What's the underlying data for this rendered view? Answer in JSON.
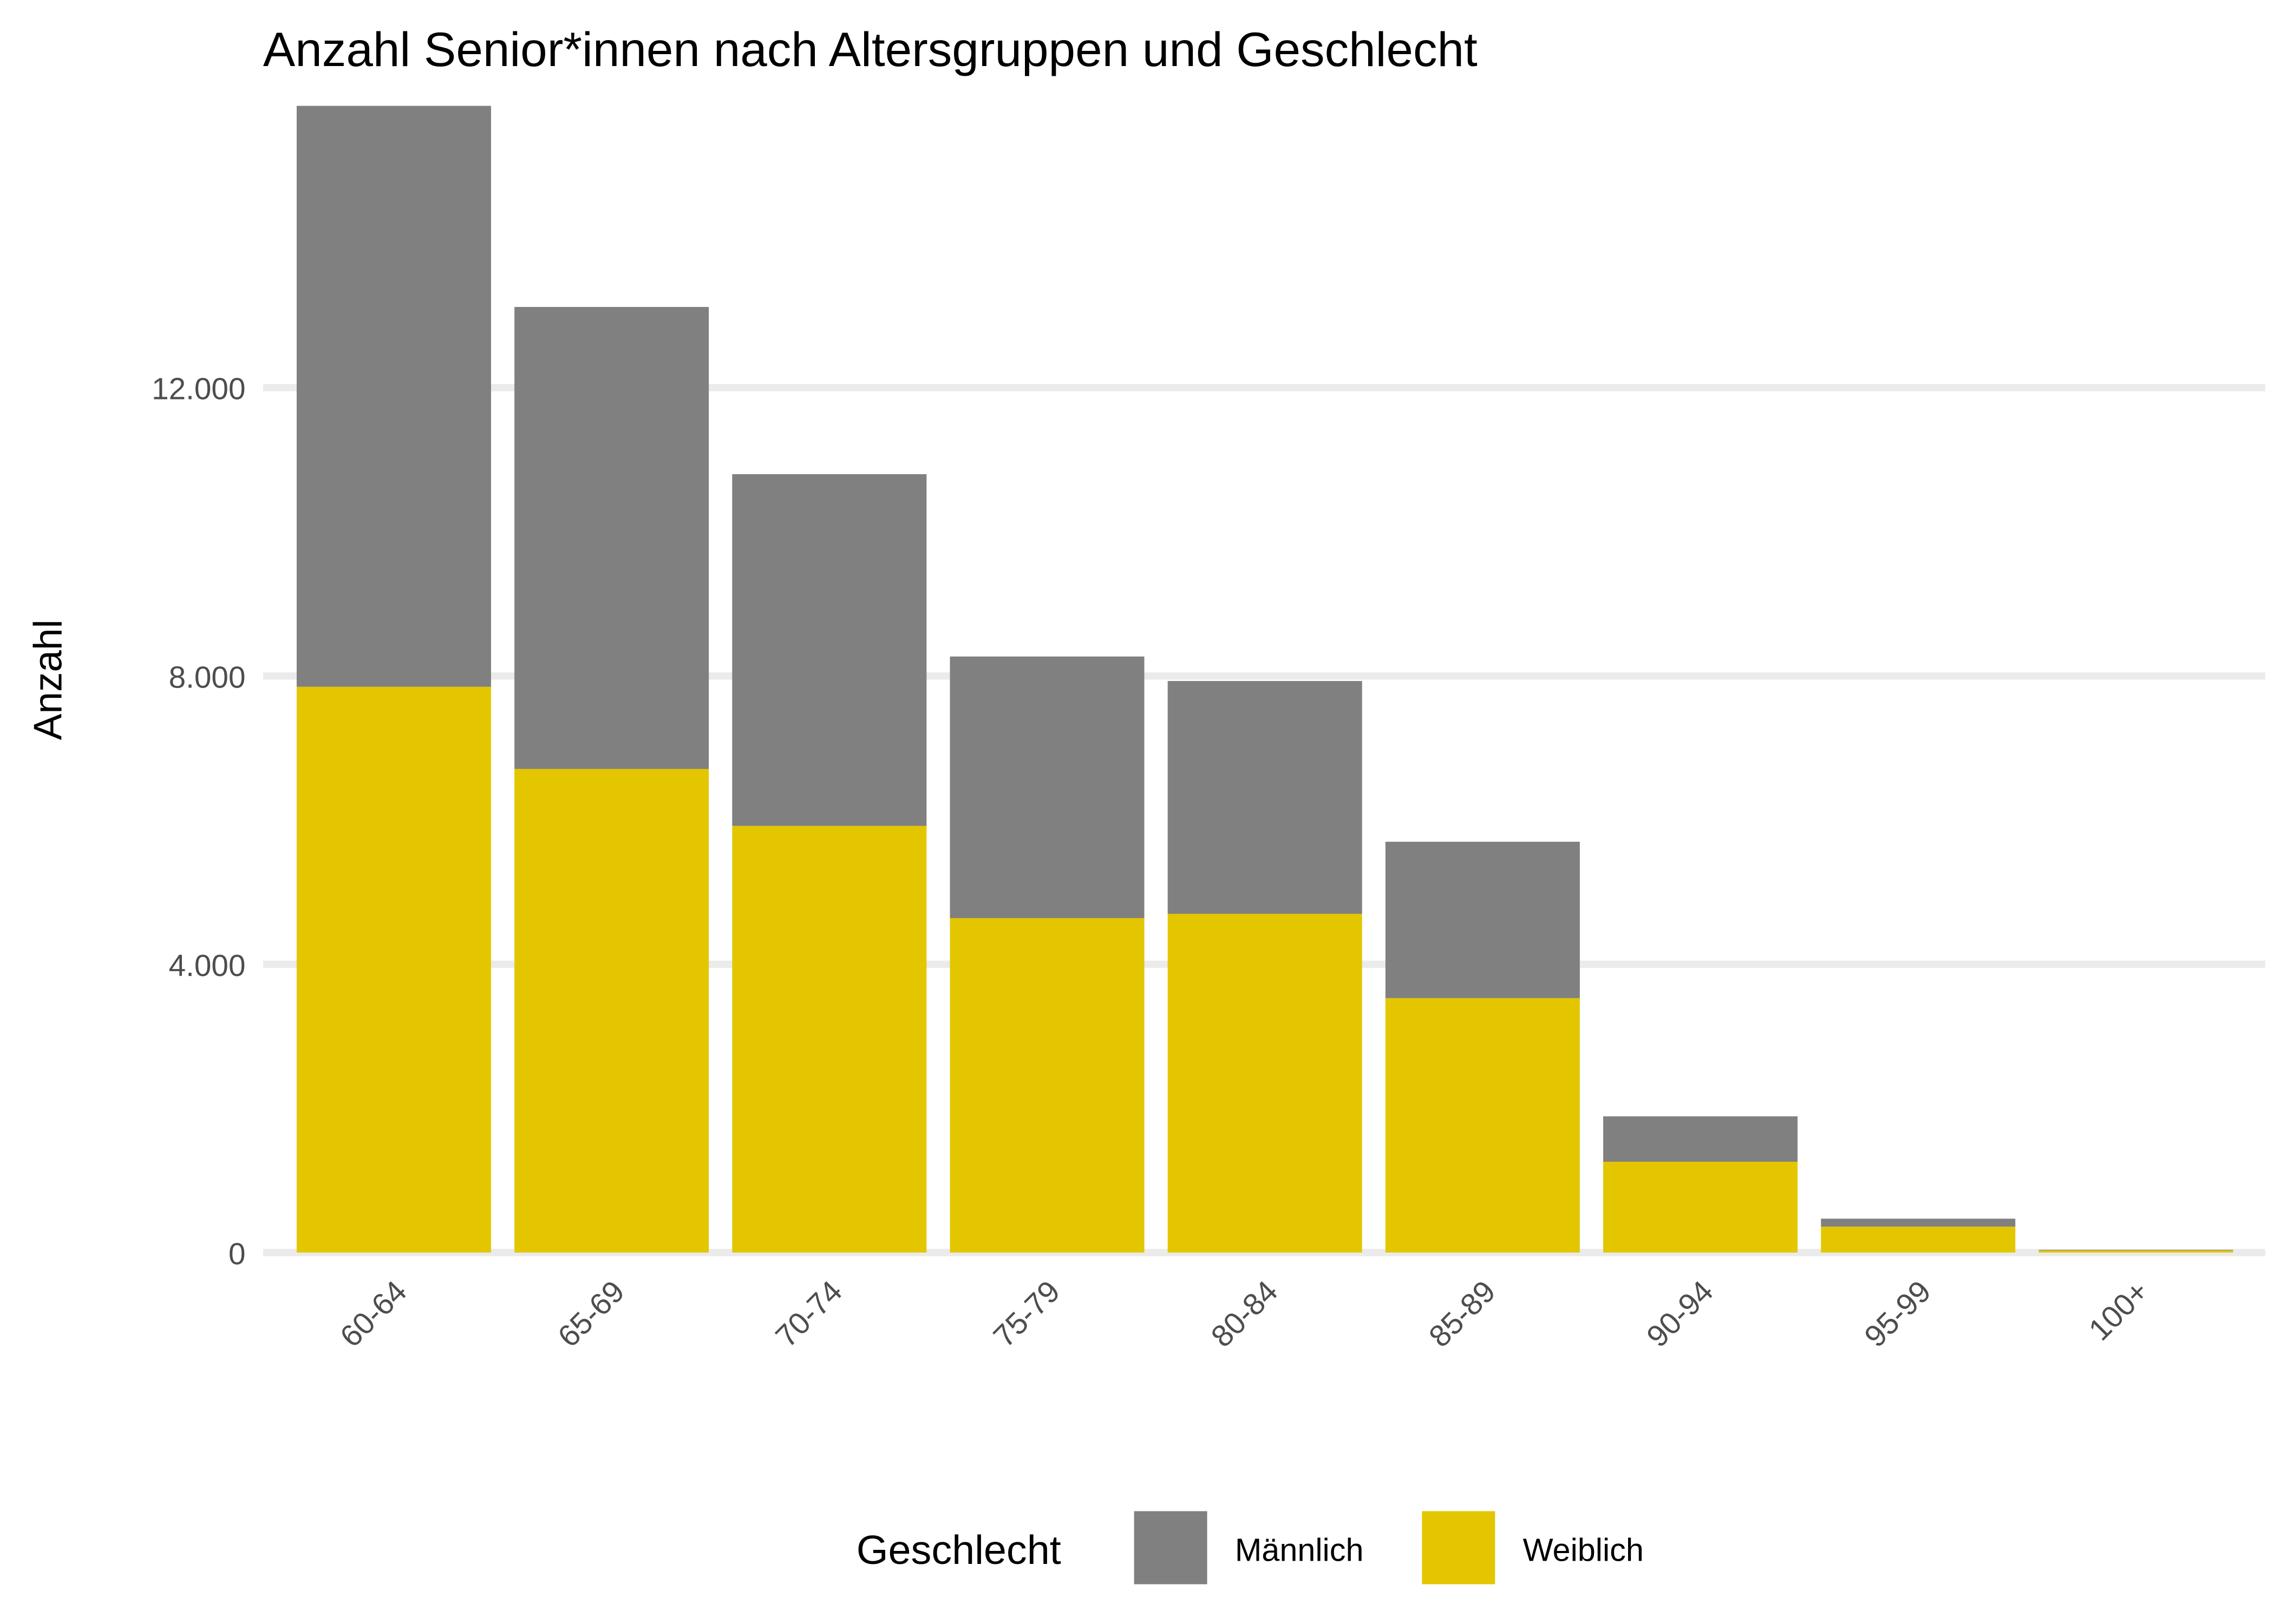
{
  "chart_data": {
    "type": "bar",
    "stacked": true,
    "title": "Anzahl Senior*innen nach Altersgruppen und Geschlecht",
    "xlabel": "",
    "ylabel": "Anzahl",
    "ylim": [
      0,
      16000
    ],
    "yticks": [
      0,
      4000,
      8000,
      12000
    ],
    "ytick_labels": [
      "0",
      "4.000",
      "8.000",
      "12.000"
    ],
    "grid": true,
    "legend": {
      "title": "Geschlecht",
      "position": "bottom"
    },
    "categories": [
      "60-64",
      "65-69",
      "70-74",
      "75-79",
      "80-84",
      "85-89",
      "90-94",
      "95-99",
      "100+"
    ],
    "series": [
      {
        "name": "Weiblich",
        "color": "#E3C600",
        "values": [
          7850,
          6710,
          5920,
          4640,
          4700,
          3530,
          1260,
          360,
          30
        ]
      },
      {
        "name": "Männlich",
        "color": "#808080",
        "values": [
          8060,
          6410,
          4880,
          3630,
          3230,
          2170,
          630,
          110,
          8
        ]
      }
    ]
  }
}
